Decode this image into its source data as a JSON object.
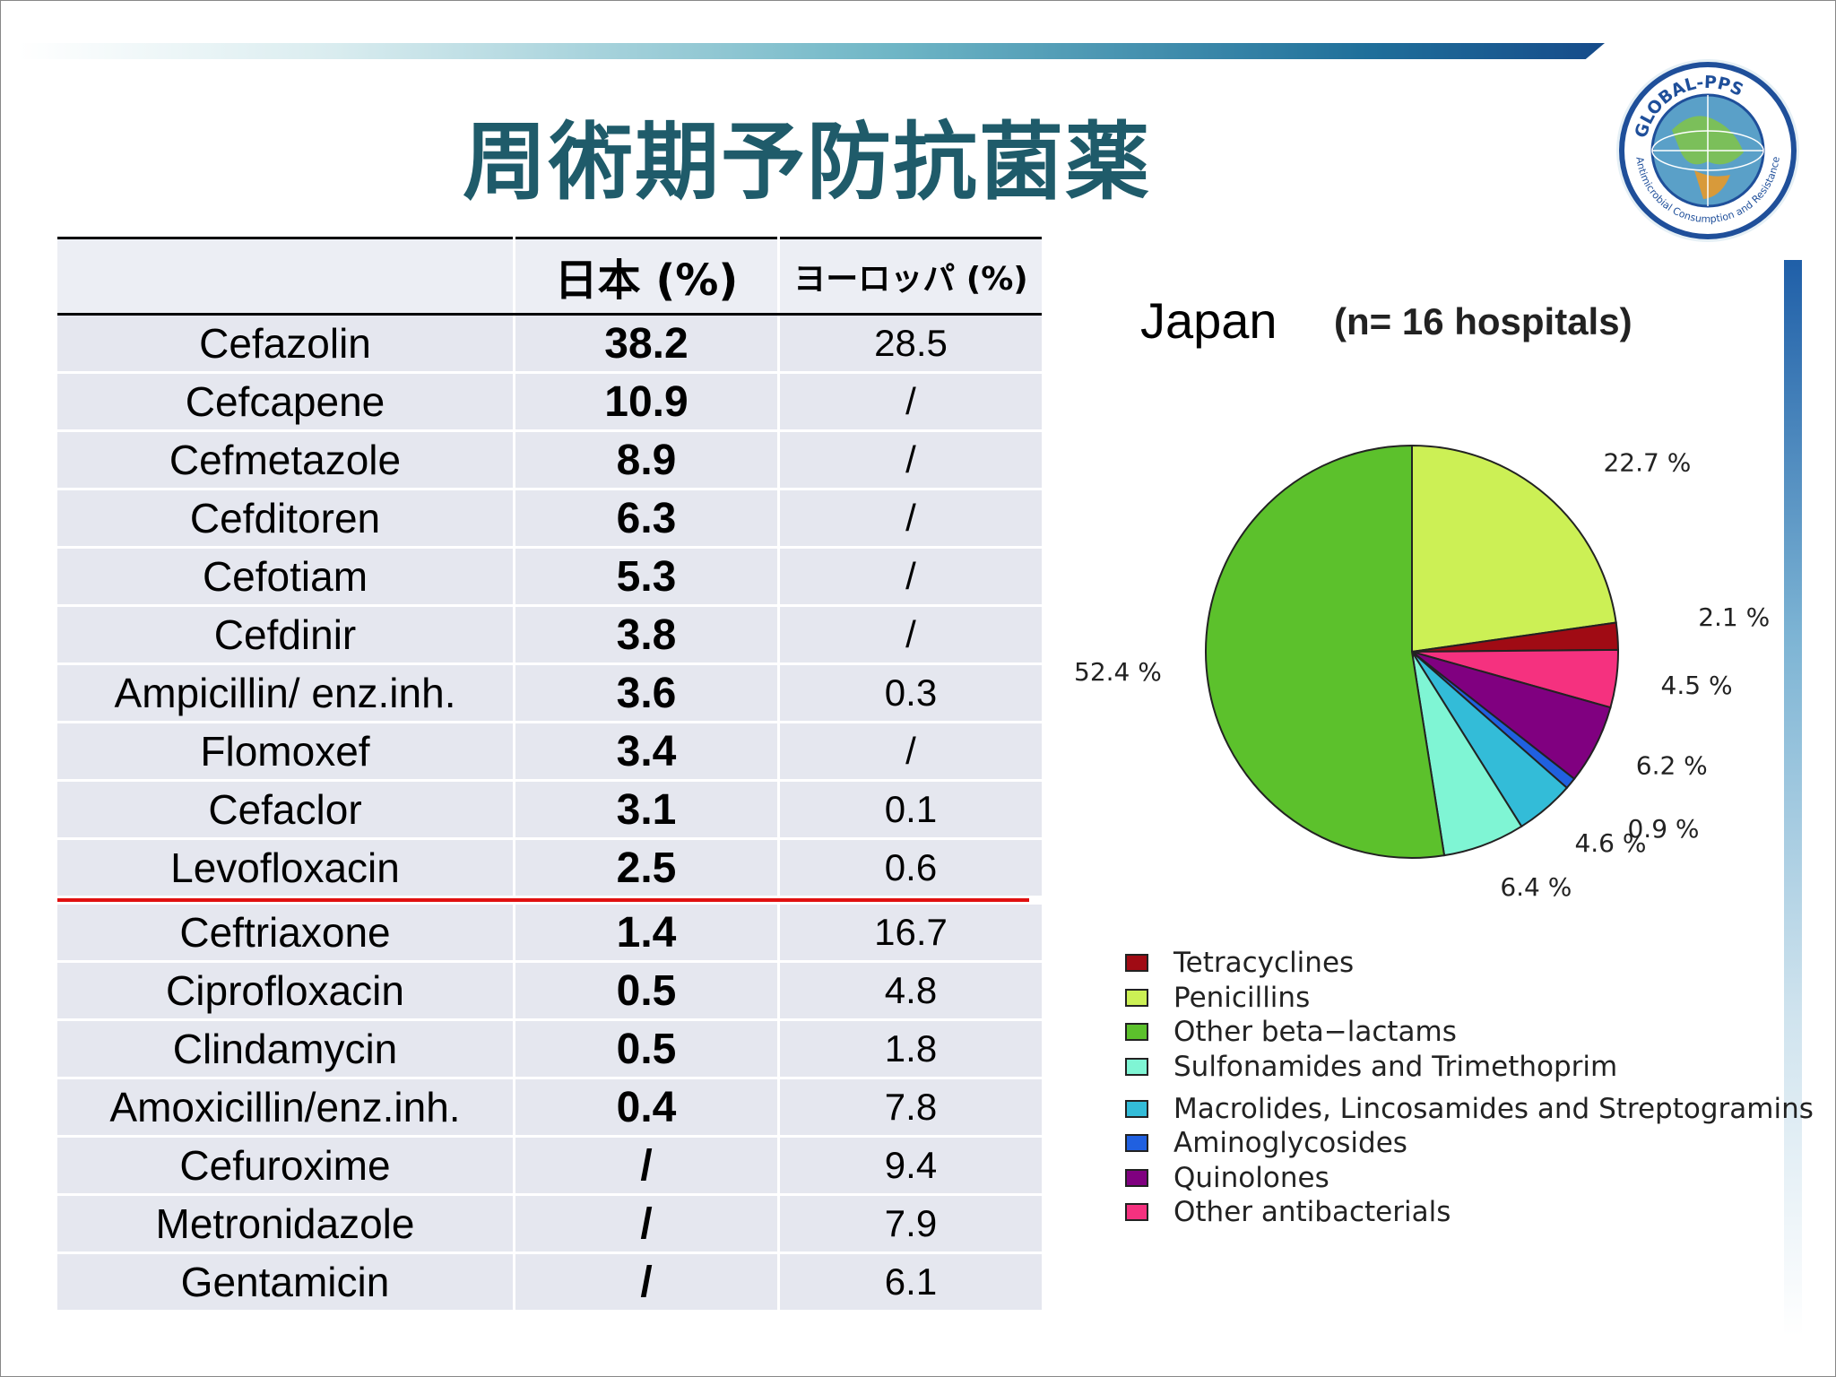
{
  "title": "周術期予防抗菌薬",
  "table": {
    "headers": [
      "",
      "日本 (%)",
      "ヨーロッパ (%)"
    ],
    "rows_top": [
      {
        "drug": "Cefazolin",
        "japan": "38.2",
        "europe": "28.5"
      },
      {
        "drug": "Cefcapene",
        "japan": "10.9",
        "europe": "/"
      },
      {
        "drug": "Cefmetazole",
        "japan": "8.9",
        "europe": "/"
      },
      {
        "drug": "Cefditoren",
        "japan": "6.3",
        "europe": "/"
      },
      {
        "drug": "Cefotiam",
        "japan": "5.3",
        "europe": "/"
      },
      {
        "drug": "Cefdinir",
        "japan": "3.8",
        "europe": "/"
      },
      {
        "drug": "Ampicillin/ enz.inh.",
        "japan": "3.6",
        "europe": "0.3"
      },
      {
        "drug": "Flomoxef",
        "japan": "3.4",
        "europe": "/"
      },
      {
        "drug": "Cefaclor",
        "japan": "3.1",
        "europe": "0.1"
      },
      {
        "drug": "Levofloxacin",
        "japan": "2.5",
        "europe": "0.6"
      }
    ],
    "rows_bottom": [
      {
        "drug": "Ceftriaxone",
        "japan": "1.4",
        "europe": "16.7"
      },
      {
        "drug": "Ciprofloxacin",
        "japan": "0.5",
        "europe": "4.8"
      },
      {
        "drug": "Clindamycin",
        "japan": "0.5",
        "europe": "1.8"
      },
      {
        "drug": "Amoxicillin/enz.inh.",
        "japan": "0.4",
        "europe": "7.8"
      },
      {
        "drug": "Cefuroxime",
        "japan": "/",
        "europe": "9.4"
      },
      {
        "drug": "Metronidazole",
        "japan": "/",
        "europe": "7.9"
      },
      {
        "drug": "Gentamicin",
        "japan": "/",
        "europe": "6.1"
      }
    ]
  },
  "chart_data": {
    "type": "pie",
    "title": "Japan",
    "subtitle": "(n= 16  hospitals)",
    "legend_position": "bottom",
    "slices": [
      {
        "name": "Penicillins",
        "value": 22.7,
        "label": "22.7 %",
        "color": "#ccf055"
      },
      {
        "name": "Tetracyclines",
        "value": 2.1,
        "label": "2.1 %",
        "color": "#a00b14"
      },
      {
        "name": "Other antibacterials",
        "value": 4.5,
        "label": "4.5 %",
        "color": "#f5317f"
      },
      {
        "name": "Quinolones",
        "value": 6.2,
        "label": "6.2 %",
        "color": "#800080"
      },
      {
        "name": "Aminoglycosides",
        "value": 0.9,
        "label": "0.9 %",
        "color": "#2060e0"
      },
      {
        "name": "Macrolides, Lincosamides and Streptogramins",
        "value": 4.6,
        "label": "4.6 %",
        "color": "#33bcd8"
      },
      {
        "name": "Sulfonamides and Trimethoprim",
        "value": 6.4,
        "label": "6.4 %",
        "color": "#7ff5d4"
      },
      {
        "name": "Other beta-lactams",
        "value": 52.4,
        "label": "52.4 %",
        "color": "#5cc12c"
      }
    ],
    "legend": [
      {
        "label": "Tetracyclines",
        "color": "#a00b14"
      },
      {
        "label": "Penicillins",
        "color": "#ccf055"
      },
      {
        "label": "Other beta−lactams",
        "color": "#5cc12c"
      },
      {
        "label": "Sulfonamides and Trimethoprim",
        "color": "#7ff5d4"
      },
      {
        "label": "Macrolides, Lincosamides and Streptogramins",
        "color": "#33bcd8"
      },
      {
        "label": "Aminoglycosides",
        "color": "#2060e0"
      },
      {
        "label": "Quinolones",
        "color": "#800080"
      },
      {
        "label": "Other antibacterials",
        "color": "#f5317f"
      }
    ]
  }
}
